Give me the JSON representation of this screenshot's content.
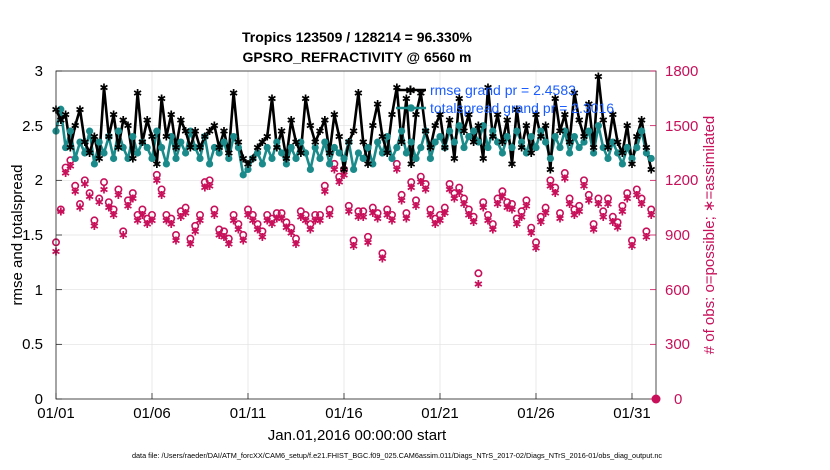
{
  "chart_data": {
    "type": "line",
    "title": "Tropics 123509 / 128214 = 96.330%",
    "subtitle": "GPSRO_REFRACTIVITY @ 6560 m",
    "xlabel": "Jan.01,2016 00:00:00 start",
    "ylabel": "rmse and totalspread",
    "ylabel_right": "# of obs: o=possible; ∗=assimilated",
    "x_tick_labels": [
      "01/01",
      "01/06",
      "01/11",
      "01/16",
      "01/21",
      "01/26",
      "01/31"
    ],
    "y_tick_labels": [
      "0",
      "0.5",
      "1",
      "1.5",
      "2",
      "2.5",
      "3"
    ],
    "y2_tick_labels": [
      "0",
      "300",
      "600",
      "900",
      "1200",
      "1500",
      "1800"
    ],
    "xlim": [
      0,
      31.25
    ],
    "ylim": [
      0,
      3
    ],
    "y2lim": [
      0,
      1800
    ],
    "legend_location": "top-right",
    "footer": "data file: /Users/raeder/DAI/ATM_forcXX/CAM6_setup/f.e21.FHIST_BGC.f09_025.CAM6assim.011/Diags_NTrS_2017-02/Diags_NTrS_2016-01/obs_diag_output.nc",
    "series": [
      {
        "name": "rmse",
        "legend": "rmse grand pr = 2.4583",
        "color": "#000000",
        "marker": "star",
        "axis": "left",
        "x": [
          0.0,
          0.25,
          0.5,
          0.75,
          1.0,
          1.25,
          1.5,
          1.75,
          2.0,
          2.25,
          2.5,
          2.75,
          3.0,
          3.25,
          3.5,
          3.75,
          4.0,
          4.25,
          4.5,
          4.75,
          5.0,
          5.25,
          5.5,
          5.75,
          6.0,
          6.25,
          6.5,
          6.75,
          7.0,
          7.25,
          7.5,
          7.75,
          8.0,
          8.25,
          8.5,
          8.75,
          9.0,
          9.25,
          9.5,
          9.75,
          10.0,
          10.25,
          10.5,
          10.75,
          11.0,
          11.25,
          11.5,
          11.75,
          12.0,
          12.25,
          12.5,
          12.75,
          13.0,
          13.25,
          13.5,
          13.75,
          14.0,
          14.25,
          14.5,
          14.75,
          15.0,
          15.25,
          15.5,
          15.75,
          16.0,
          16.25,
          16.5,
          16.75,
          17.0,
          17.25,
          17.5,
          17.75,
          18.0,
          18.25,
          18.5,
          18.75,
          19.0,
          19.25,
          19.5,
          19.75,
          20.0,
          20.25,
          20.5,
          20.75,
          21.0,
          21.25,
          21.5,
          21.75,
          22.0,
          22.25,
          22.5,
          22.75,
          23.0,
          23.25,
          23.5,
          23.75,
          24.0,
          24.25,
          24.5,
          24.75,
          25.0,
          25.25,
          25.5,
          25.75,
          26.0,
          26.25,
          26.5,
          26.75,
          27.0,
          27.25,
          27.5,
          27.75,
          28.0,
          28.25,
          28.5,
          28.75,
          29.0,
          29.25,
          29.5,
          29.75,
          30.0,
          30.25,
          30.5,
          30.75,
          31.0
        ],
        "y": [
          2.65,
          2.55,
          2.6,
          2.3,
          2.5,
          2.65,
          2.35,
          2.25,
          2.4,
          2.2,
          2.85,
          2.4,
          2.6,
          2.3,
          2.55,
          2.5,
          2.2,
          2.8,
          2.35,
          2.55,
          2.4,
          2.15,
          2.75,
          2.4,
          2.6,
          2.3,
          2.55,
          2.45,
          2.3,
          2.45,
          2.3,
          2.4,
          2.45,
          2.5,
          2.3,
          2.45,
          2.25,
          2.8,
          2.35,
          2.2,
          2.15,
          2.2,
          2.3,
          2.35,
          2.4,
          2.75,
          2.3,
          2.45,
          2.2,
          2.55,
          2.35,
          2.25,
          2.75,
          2.5,
          2.35,
          2.45,
          2.55,
          2.25,
          2.6,
          2.4,
          2.1,
          2.35,
          2.45,
          2.8,
          2.35,
          2.15,
          2.5,
          2.7,
          2.4,
          2.25,
          2.6,
          2.85,
          2.35,
          2.75,
          2.15,
          2.6,
          2.8,
          2.45,
          2.3,
          2.5,
          2.6,
          2.3,
          2.55,
          2.2,
          2.75,
          2.45,
          2.6,
          2.35,
          2.5,
          2.2,
          2.85,
          2.4,
          2.6,
          2.35,
          2.55,
          2.15,
          2.65,
          2.3,
          2.5,
          2.25,
          2.6,
          2.4,
          2.5,
          2.1,
          2.75,
          2.45,
          2.6,
          2.35,
          2.8,
          2.55,
          2.4,
          2.7,
          2.3,
          2.95,
          2.55,
          2.3,
          2.6,
          2.35,
          2.25,
          2.5,
          2.15,
          2.4,
          2.55,
          2.3,
          2.1
        ]
      },
      {
        "name": "totalspread",
        "legend": "totalspread grand pr = 2.3016",
        "color": "#1a8a8a",
        "marker": "circle",
        "axis": "left",
        "x": [
          0.0,
          0.25,
          0.5,
          0.75,
          1.0,
          1.25,
          1.5,
          1.75,
          2.0,
          2.25,
          2.5,
          2.75,
          3.0,
          3.25,
          3.5,
          3.75,
          4.0,
          4.25,
          4.5,
          4.75,
          5.0,
          5.25,
          5.5,
          5.75,
          6.0,
          6.25,
          6.5,
          6.75,
          7.0,
          7.25,
          7.5,
          7.75,
          8.0,
          8.25,
          8.5,
          8.75,
          9.0,
          9.25,
          9.5,
          9.75,
          10.0,
          10.25,
          10.5,
          10.75,
          11.0,
          11.25,
          11.5,
          11.75,
          12.0,
          12.25,
          12.5,
          12.75,
          13.0,
          13.25,
          13.5,
          13.75,
          14.0,
          14.25,
          14.5,
          14.75,
          15.0,
          15.25,
          15.5,
          15.75,
          16.0,
          16.25,
          16.5,
          16.75,
          17.0,
          17.25,
          17.5,
          17.75,
          18.0,
          18.25,
          18.5,
          18.75,
          19.0,
          19.25,
          19.5,
          19.75,
          20.0,
          20.25,
          20.5,
          20.75,
          21.0,
          21.25,
          21.5,
          21.75,
          22.0,
          22.25,
          22.5,
          22.75,
          23.0,
          23.25,
          23.5,
          23.75,
          24.0,
          24.25,
          24.5,
          24.75,
          25.0,
          25.25,
          25.5,
          25.75,
          26.0,
          26.25,
          26.5,
          26.75,
          27.0,
          27.25,
          27.5,
          27.75,
          28.0,
          28.25,
          28.5,
          28.75,
          29.0,
          29.25,
          29.5,
          29.75,
          30.0,
          30.25,
          30.5,
          30.75,
          31.0
        ],
        "y": [
          2.45,
          2.65,
          2.3,
          2.45,
          2.2,
          2.35,
          2.25,
          2.45,
          2.15,
          2.35,
          2.25,
          2.4,
          2.2,
          2.45,
          2.3,
          2.2,
          2.4,
          2.25,
          2.35,
          2.3,
          2.2,
          2.45,
          2.3,
          2.15,
          2.4,
          2.2,
          2.35,
          2.25,
          2.45,
          2.3,
          2.2,
          2.4,
          2.15,
          2.3,
          2.25,
          2.35,
          2.2,
          2.4,
          2.3,
          2.05,
          2.1,
          2.2,
          2.25,
          2.15,
          2.3,
          2.2,
          2.35,
          2.25,
          2.15,
          2.3,
          2.2,
          2.35,
          2.25,
          2.1,
          2.3,
          2.2,
          2.35,
          2.15,
          2.3,
          2.25,
          2.2,
          2.35,
          2.1,
          2.25,
          2.2,
          2.3,
          2.15,
          2.35,
          2.25,
          2.4,
          2.2,
          2.3,
          2.45,
          2.25,
          2.35,
          2.2,
          2.3,
          2.45,
          2.2,
          2.35,
          2.4,
          2.3,
          2.45,
          2.35,
          2.5,
          2.3,
          2.4,
          2.45,
          2.35,
          2.5,
          2.3,
          2.45,
          2.35,
          2.25,
          2.4,
          2.3,
          2.45,
          2.35,
          2.25,
          2.4,
          2.3,
          2.45,
          2.35,
          2.2,
          2.4,
          2.3,
          2.45,
          2.25,
          2.4,
          2.3,
          2.35,
          2.45,
          2.25,
          2.5,
          2.3,
          2.2,
          2.35,
          2.25,
          2.15,
          2.3,
          2.2,
          2.3,
          2.45,
          2.25,
          2.2
        ]
      },
      {
        "name": "obs possible",
        "color": "#c8105a",
        "marker": "open-circle",
        "axis": "right",
        "x": [
          0.0,
          0.25,
          0.5,
          0.75,
          1.0,
          1.25,
          1.5,
          1.75,
          2.0,
          2.25,
          2.5,
          2.75,
          3.0,
          3.25,
          3.5,
          3.75,
          4.0,
          4.25,
          4.5,
          4.75,
          5.0,
          5.25,
          5.5,
          5.75,
          6.0,
          6.25,
          6.5,
          6.75,
          7.0,
          7.25,
          7.5,
          7.75,
          8.0,
          8.25,
          8.5,
          8.75,
          9.0,
          9.25,
          9.5,
          9.75,
          10.0,
          10.25,
          10.5,
          10.75,
          11.0,
          11.25,
          11.5,
          11.75,
          12.0,
          12.25,
          12.5,
          12.75,
          13.0,
          13.25,
          13.5,
          13.75,
          14.0,
          14.25,
          14.5,
          14.75,
          15.0,
          15.25,
          15.5,
          15.75,
          16.0,
          16.25,
          16.5,
          16.75,
          17.0,
          17.25,
          17.5,
          17.75,
          18.0,
          18.25,
          18.5,
          18.75,
          19.0,
          19.25,
          19.5,
          19.75,
          20.0,
          20.25,
          20.5,
          20.75,
          21.0,
          21.25,
          21.5,
          21.75,
          22.0,
          22.25,
          22.5,
          22.75,
          23.0,
          23.25,
          23.5,
          23.75,
          24.0,
          24.25,
          24.5,
          24.75,
          25.0,
          25.25,
          25.5,
          25.75,
          26.0,
          26.25,
          26.5,
          26.75,
          27.0,
          27.25,
          27.5,
          27.75,
          28.0,
          28.25,
          28.5,
          28.75,
          29.0,
          29.25,
          29.5,
          29.75,
          30.0,
          30.25,
          30.5,
          30.75,
          31.0
        ],
        "y": [
          860,
          1040,
          1270,
          1310,
          1170,
          1070,
          1200,
          1130,
          980,
          1100,
          1190,
          1080,
          1040,
          1150,
          920,
          1090,
          1130,
          1010,
          1040,
          990,
          1010,
          1230,
          1150,
          1010,
          990,
          900,
          1030,
          1050,
          880,
          950,
          1010,
          1190,
          1200,
          1040,
          930,
          920,
          880,
          1010,
          960,
          900,
          1040,
          1010,
          960,
          920,
          1010,
          990,
          1020,
          1020,
          970,
          940,
          880,
          1030,
          1010,
          960,
          1010,
          1010,
          1170,
          1040,
          1290,
          1220,
          1260,
          1060,
          870,
          1030,
          1030,
          890,
          1050,
          1020,
          800,
          1040,
          1010,
          1290,
          1120,
          1020,
          1190,
          1090,
          1220,
          1180,
          1040,
          990,
          1010,
          1050,
          1180,
          1130,
          1160,
          1100,
          1040,
          1000,
          690,
          1080,
          1010,
          960,
          1100,
          1140,
          1080,
          1070,
          990,
          1030,
          1090,
          940,
          860,
          1000,
          1050,
          1200,
          1160,
          1020,
          1240,
          1100,
          1040,
          1060,
          1200,
          1120,
          960,
          1100,
          1030,
          1100,
          1000,
          970,
          1060,
          1130,
          870,
          1150,
          1100,
          920,
          1040
        ],
        "extra_point_label": "0"
      },
      {
        "name": "obs assimilated",
        "color": "#c8105a",
        "marker": "asterisk",
        "axis": "right",
        "x": [
          0.0,
          0.25,
          0.5,
          0.75,
          1.0,
          1.25,
          1.5,
          1.75,
          2.0,
          2.25,
          2.5,
          2.75,
          3.0,
          3.25,
          3.5,
          3.75,
          4.0,
          4.25,
          4.5,
          4.75,
          5.0,
          5.25,
          5.5,
          5.75,
          6.0,
          6.25,
          6.5,
          6.75,
          7.0,
          7.25,
          7.5,
          7.75,
          8.0,
          8.25,
          8.5,
          8.75,
          9.0,
          9.25,
          9.5,
          9.75,
          10.0,
          10.25,
          10.5,
          10.75,
          11.0,
          11.25,
          11.5,
          11.75,
          12.0,
          12.25,
          12.5,
          12.75,
          13.0,
          13.25,
          13.5,
          13.75,
          14.0,
          14.25,
          14.5,
          14.75,
          15.0,
          15.25,
          15.5,
          15.75,
          16.0,
          16.25,
          16.5,
          16.75,
          17.0,
          17.25,
          17.5,
          17.75,
          18.0,
          18.25,
          18.5,
          18.75,
          19.0,
          19.25,
          19.5,
          19.75,
          20.0,
          20.25,
          20.5,
          20.75,
          21.0,
          21.25,
          21.5,
          21.75,
          22.0,
          22.25,
          22.5,
          22.75,
          23.0,
          23.25,
          23.5,
          23.75,
          24.0,
          24.25,
          24.5,
          24.75,
          25.0,
          25.25,
          25.5,
          25.75,
          26.0,
          26.25,
          26.5,
          26.75,
          27.0,
          27.25,
          27.5,
          27.75,
          28.0,
          28.25,
          28.5,
          28.75,
          29.0,
          29.25,
          29.5,
          29.75,
          30.0,
          30.25,
          30.5,
          30.75,
          31.0
        ],
        "y": [
          810,
          1030,
          1240,
          1280,
          1140,
          1050,
          1180,
          1110,
          950,
          1080,
          1150,
          1050,
          1010,
          1120,
          900,
          1060,
          1100,
          980,
          1010,
          960,
          980,
          1200,
          1120,
          980,
          960,
          870,
          1000,
          1020,
          850,
          920,
          980,
          1160,
          1170,
          1010,
          900,
          890,
          850,
          980,
          930,
          870,
          1010,
          980,
          930,
          890,
          980,
          960,
          990,
          990,
          940,
          910,
          850,
          1000,
          980,
          930,
          980,
          980,
          1140,
          1010,
          1260,
          1190,
          1230,
          1030,
          840,
          1000,
          1000,
          860,
          1020,
          990,
          770,
          1010,
          980,
          1260,
          1090,
          990,
          1160,
          1060,
          1190,
          1150,
          1010,
          960,
          980,
          1020,
          1150,
          1100,
          1130,
          1070,
          1010,
          970,
          630,
          1050,
          980,
          930,
          1070,
          1110,
          1050,
          1040,
          960,
          1000,
          1060,
          910,
          830,
          970,
          1020,
          1170,
          1130,
          990,
          1210,
          1070,
          1010,
          1030,
          1170,
          1090,
          930,
          1070,
          1000,
          1070,
          970,
          940,
          1030,
          1100,
          840,
          1120,
          1070,
          890,
          1010
        ]
      }
    ]
  }
}
